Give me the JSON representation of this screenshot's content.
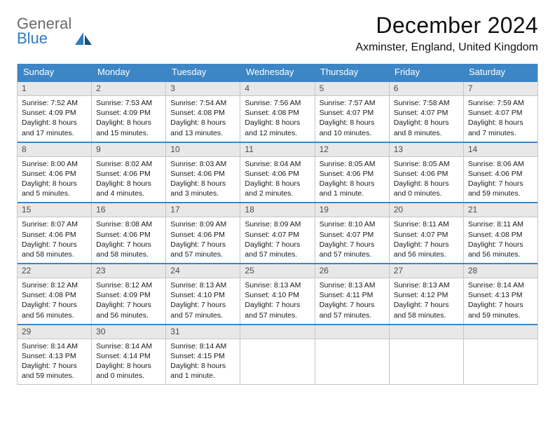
{
  "logo": {
    "line1": "General",
    "line2": "Blue"
  },
  "title": "December 2024",
  "location": "Axminster, England, United Kingdom",
  "colors": {
    "accent": "#3d86c6",
    "daynum_bg": "#e8e8e8",
    "border": "#c6c6c6",
    "text": "#1a1a1a",
    "logo_gray": "#6a6a6a",
    "logo_blue": "#2f7cc0"
  },
  "dow": [
    "Sunday",
    "Monday",
    "Tuesday",
    "Wednesday",
    "Thursday",
    "Friday",
    "Saturday"
  ],
  "weeks": [
    [
      {
        "n": "1",
        "sunrise": "7:52 AM",
        "sunset": "4:09 PM",
        "dl": "8 hours and 17 minutes."
      },
      {
        "n": "2",
        "sunrise": "7:53 AM",
        "sunset": "4:09 PM",
        "dl": "8 hours and 15 minutes."
      },
      {
        "n": "3",
        "sunrise": "7:54 AM",
        "sunset": "4:08 PM",
        "dl": "8 hours and 13 minutes."
      },
      {
        "n": "4",
        "sunrise": "7:56 AM",
        "sunset": "4:08 PM",
        "dl": "8 hours and 12 minutes."
      },
      {
        "n": "5",
        "sunrise": "7:57 AM",
        "sunset": "4:07 PM",
        "dl": "8 hours and 10 minutes."
      },
      {
        "n": "6",
        "sunrise": "7:58 AM",
        "sunset": "4:07 PM",
        "dl": "8 hours and 8 minutes."
      },
      {
        "n": "7",
        "sunrise": "7:59 AM",
        "sunset": "4:07 PM",
        "dl": "8 hours and 7 minutes."
      }
    ],
    [
      {
        "n": "8",
        "sunrise": "8:00 AM",
        "sunset": "4:06 PM",
        "dl": "8 hours and 5 minutes."
      },
      {
        "n": "9",
        "sunrise": "8:02 AM",
        "sunset": "4:06 PM",
        "dl": "8 hours and 4 minutes."
      },
      {
        "n": "10",
        "sunrise": "8:03 AM",
        "sunset": "4:06 PM",
        "dl": "8 hours and 3 minutes."
      },
      {
        "n": "11",
        "sunrise": "8:04 AM",
        "sunset": "4:06 PM",
        "dl": "8 hours and 2 minutes."
      },
      {
        "n": "12",
        "sunrise": "8:05 AM",
        "sunset": "4:06 PM",
        "dl": "8 hours and 1 minute."
      },
      {
        "n": "13",
        "sunrise": "8:05 AM",
        "sunset": "4:06 PM",
        "dl": "8 hours and 0 minutes."
      },
      {
        "n": "14",
        "sunrise": "8:06 AM",
        "sunset": "4:06 PM",
        "dl": "7 hours and 59 minutes."
      }
    ],
    [
      {
        "n": "15",
        "sunrise": "8:07 AM",
        "sunset": "4:06 PM",
        "dl": "7 hours and 58 minutes."
      },
      {
        "n": "16",
        "sunrise": "8:08 AM",
        "sunset": "4:06 PM",
        "dl": "7 hours and 58 minutes."
      },
      {
        "n": "17",
        "sunrise": "8:09 AM",
        "sunset": "4:06 PM",
        "dl": "7 hours and 57 minutes."
      },
      {
        "n": "18",
        "sunrise": "8:09 AM",
        "sunset": "4:07 PM",
        "dl": "7 hours and 57 minutes."
      },
      {
        "n": "19",
        "sunrise": "8:10 AM",
        "sunset": "4:07 PM",
        "dl": "7 hours and 57 minutes."
      },
      {
        "n": "20",
        "sunrise": "8:11 AM",
        "sunset": "4:07 PM",
        "dl": "7 hours and 56 minutes."
      },
      {
        "n": "21",
        "sunrise": "8:11 AM",
        "sunset": "4:08 PM",
        "dl": "7 hours and 56 minutes."
      }
    ],
    [
      {
        "n": "22",
        "sunrise": "8:12 AM",
        "sunset": "4:08 PM",
        "dl": "7 hours and 56 minutes."
      },
      {
        "n": "23",
        "sunrise": "8:12 AM",
        "sunset": "4:09 PM",
        "dl": "7 hours and 56 minutes."
      },
      {
        "n": "24",
        "sunrise": "8:13 AM",
        "sunset": "4:10 PM",
        "dl": "7 hours and 57 minutes."
      },
      {
        "n": "25",
        "sunrise": "8:13 AM",
        "sunset": "4:10 PM",
        "dl": "7 hours and 57 minutes."
      },
      {
        "n": "26",
        "sunrise": "8:13 AM",
        "sunset": "4:11 PM",
        "dl": "7 hours and 57 minutes."
      },
      {
        "n": "27",
        "sunrise": "8:13 AM",
        "sunset": "4:12 PM",
        "dl": "7 hours and 58 minutes."
      },
      {
        "n": "28",
        "sunrise": "8:14 AM",
        "sunset": "4:13 PM",
        "dl": "7 hours and 59 minutes."
      }
    ],
    [
      {
        "n": "29",
        "sunrise": "8:14 AM",
        "sunset": "4:13 PM",
        "dl": "7 hours and 59 minutes."
      },
      {
        "n": "30",
        "sunrise": "8:14 AM",
        "sunset": "4:14 PM",
        "dl": "8 hours and 0 minutes."
      },
      {
        "n": "31",
        "sunrise": "8:14 AM",
        "sunset": "4:15 PM",
        "dl": "8 hours and 1 minute."
      },
      {
        "empty": true
      },
      {
        "empty": true
      },
      {
        "empty": true
      },
      {
        "empty": true
      }
    ]
  ],
  "labels": {
    "sunrise_prefix": "Sunrise: ",
    "sunset_prefix": "Sunset: ",
    "daylight_prefix": "Daylight: "
  }
}
